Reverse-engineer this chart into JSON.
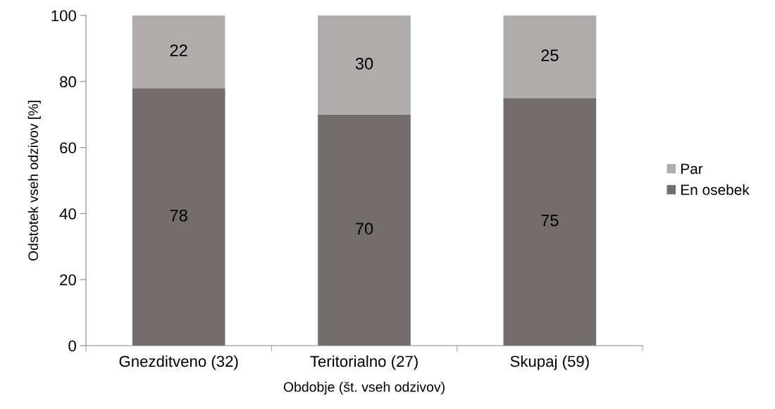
{
  "chart_data": {
    "type": "bar",
    "stacked": true,
    "xlabel": "Obdobje (št. vseh odzivov)",
    "ylabel": "Odstotek vseh odzivov [%]",
    "categories": [
      "Gnezditveno (32)",
      "Teritorialno (27)",
      "Skupaj (59)"
    ],
    "series": [
      {
        "name": "En osebek",
        "color": "#736e6c",
        "values": [
          78,
          70,
          75
        ]
      },
      {
        "name": "Par",
        "color": "#b0acab",
        "values": [
          22,
          30,
          25
        ]
      }
    ],
    "ylim": [
      0,
      100
    ],
    "yticks": [
      0,
      20,
      40,
      60,
      80,
      100
    ],
    "grid": false,
    "legend": "right",
    "data_labels": true
  }
}
